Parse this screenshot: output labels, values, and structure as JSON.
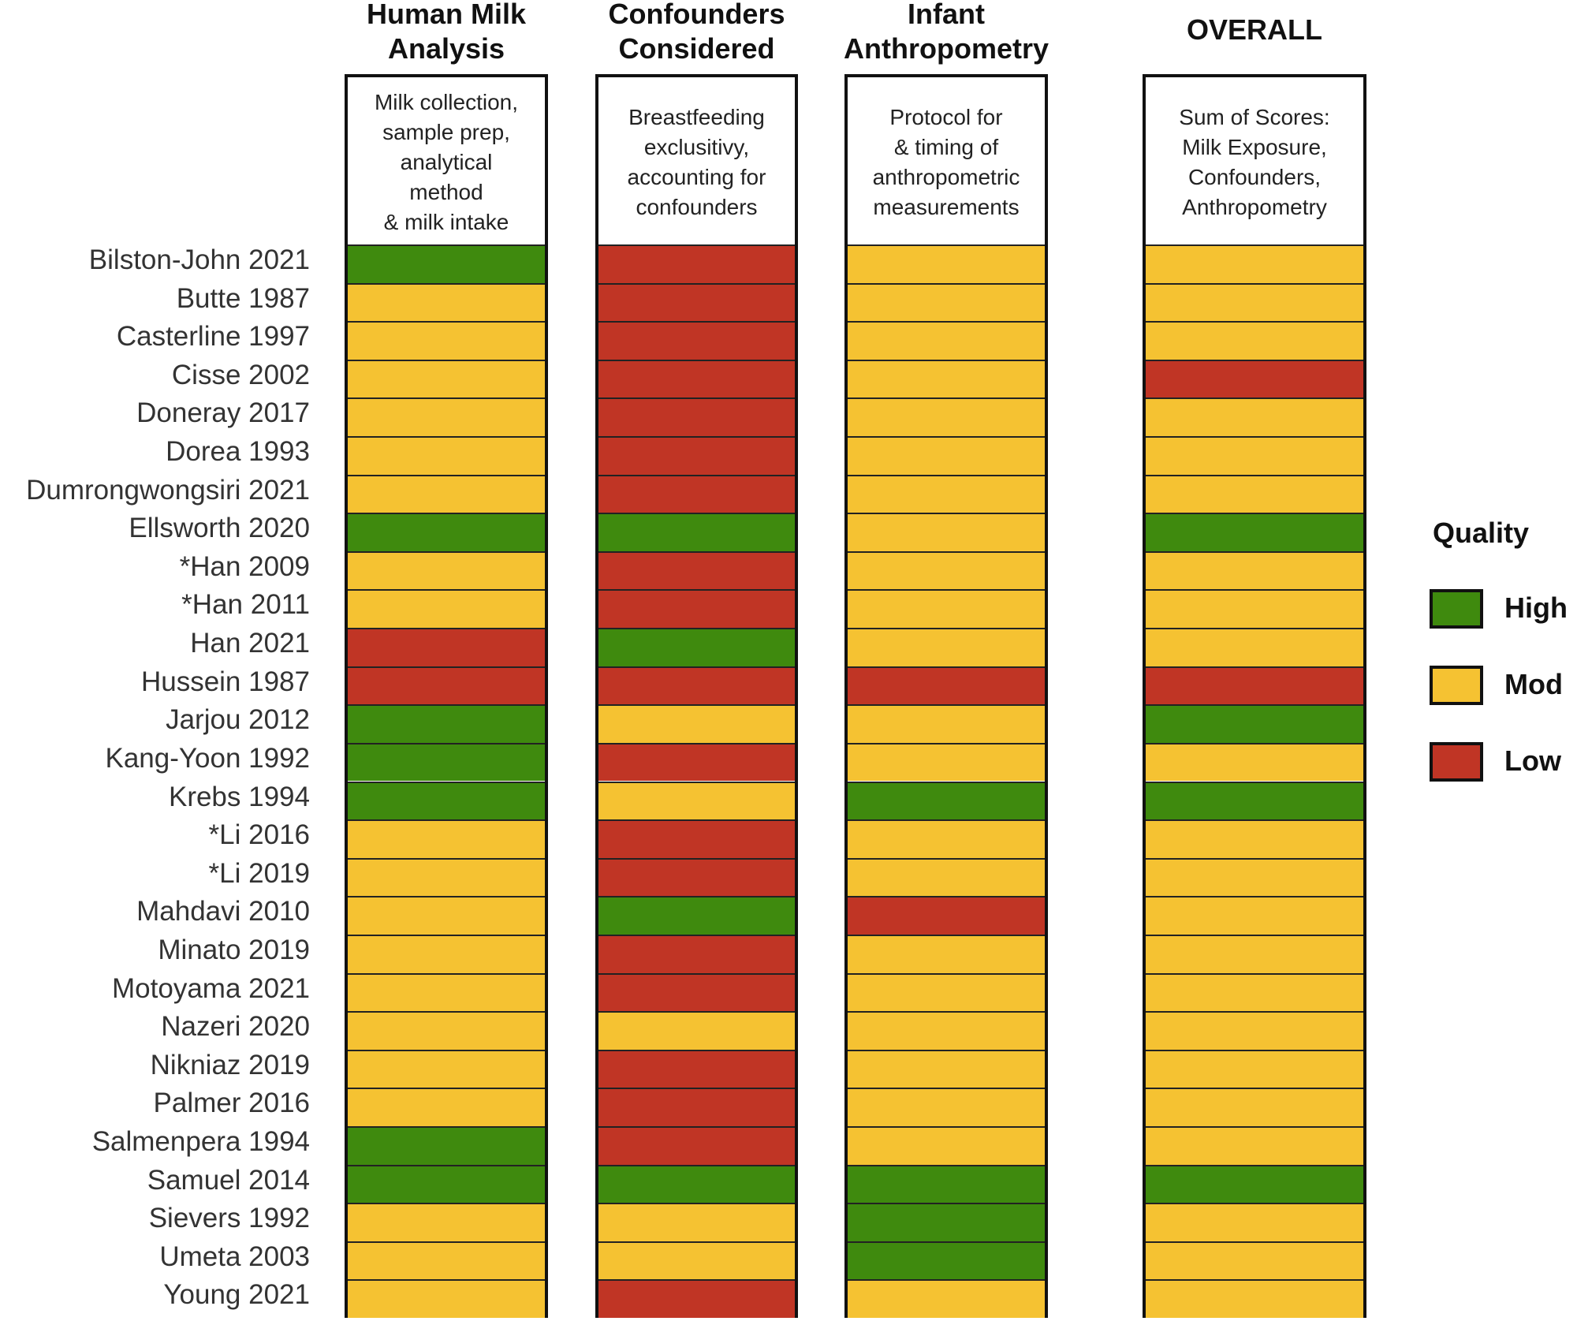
{
  "chart_data": {
    "type": "heatmap",
    "columns": [
      {
        "title": "Human Milk Analysis",
        "title_lines": [
          "Human Milk",
          "Analysis"
        ],
        "description_lines": [
          "Milk collection,",
          "sample prep,",
          "analytical",
          "method",
          "& milk intake"
        ]
      },
      {
        "title": "Confounders Considered",
        "title_lines": [
          "Confounders",
          "Considered"
        ],
        "description_lines": [
          "Breastfeeding",
          "exclusitivy,",
          "accounting for",
          "confounders"
        ]
      },
      {
        "title": "Infant Anthropometry",
        "title_lines": [
          "Infant",
          "Anthropometry"
        ],
        "description_lines": [
          "Protocol for",
          "& timing of",
          "anthropometric",
          "measurements"
        ]
      },
      {
        "title": "OVERALL",
        "title_lines": [
          "OVERALL"
        ],
        "description_lines": [
          "Sum of Scores:",
          "Milk Exposure,",
          "Confounders,",
          "Anthropometry"
        ]
      }
    ],
    "rows": [
      {
        "study": "Bilston-John 2021",
        "ratings": [
          "High",
          "Low",
          "Mod",
          "Mod"
        ]
      },
      {
        "study": "Butte 1987",
        "ratings": [
          "Mod",
          "Low",
          "Mod",
          "Mod"
        ]
      },
      {
        "study": "Casterline 1997",
        "ratings": [
          "Mod",
          "Low",
          "Mod",
          "Mod"
        ]
      },
      {
        "study": "Cisse 2002",
        "ratings": [
          "Mod",
          "Low",
          "Mod",
          "Low"
        ]
      },
      {
        "study": "Doneray 2017",
        "ratings": [
          "Mod",
          "Low",
          "Mod",
          "Mod"
        ]
      },
      {
        "study": "Dorea 1993",
        "ratings": [
          "Mod",
          "Low",
          "Mod",
          "Mod"
        ]
      },
      {
        "study": "Dumrongwongsiri 2021",
        "ratings": [
          "Mod",
          "Low",
          "Mod",
          "Mod"
        ]
      },
      {
        "study": "Ellsworth 2020",
        "ratings": [
          "High",
          "High",
          "Mod",
          "High"
        ]
      },
      {
        "study": "*Han 2009",
        "ratings": [
          "Mod",
          "Low",
          "Mod",
          "Mod"
        ]
      },
      {
        "study": "*Han 2011",
        "ratings": [
          "Mod",
          "Low",
          "Mod",
          "Mod"
        ]
      },
      {
        "study": "Han 2021",
        "ratings": [
          "Low",
          "High",
          "Mod",
          "Mod"
        ]
      },
      {
        "study": "Hussein 1987",
        "ratings": [
          "Low",
          "Low",
          "Low",
          "Low"
        ]
      },
      {
        "study": "Jarjou 2012",
        "ratings": [
          "High",
          "Mod",
          "Mod",
          "High"
        ]
      },
      {
        "study": "Kang-Yoon 1992",
        "ratings": [
          "High",
          "Low",
          "Mod",
          "Mod"
        ]
      },
      {
        "study": "Krebs 1994",
        "ratings": [
          "High",
          "Mod",
          "High",
          "High"
        ]
      },
      {
        "study": "*Li 2016",
        "ratings": [
          "Mod",
          "Low",
          "Mod",
          "Mod"
        ]
      },
      {
        "study": "*Li 2019",
        "ratings": [
          "Mod",
          "Low",
          "Mod",
          "Mod"
        ]
      },
      {
        "study": "Mahdavi 2010",
        "ratings": [
          "Mod",
          "High",
          "Low",
          "Mod"
        ]
      },
      {
        "study": "Minato 2019",
        "ratings": [
          "Mod",
          "Low",
          "Mod",
          "Mod"
        ]
      },
      {
        "study": "Motoyama 2021",
        "ratings": [
          "Mod",
          "Low",
          "Mod",
          "Mod"
        ]
      },
      {
        "study": "Nazeri 2020",
        "ratings": [
          "Mod",
          "Mod",
          "Mod",
          "Mod"
        ]
      },
      {
        "study": "Nikniaz 2019",
        "ratings": [
          "Mod",
          "Low",
          "Mod",
          "Mod"
        ]
      },
      {
        "study": "Palmer 2016",
        "ratings": [
          "Mod",
          "Low",
          "Mod",
          "Mod"
        ]
      },
      {
        "study": "Salmenpera 1994",
        "ratings": [
          "High",
          "Low",
          "Mod",
          "Mod"
        ]
      },
      {
        "study": "Samuel 2014",
        "ratings": [
          "High",
          "High",
          "High",
          "High"
        ]
      },
      {
        "study": "Sievers 1992",
        "ratings": [
          "Mod",
          "Mod",
          "High",
          "Mod"
        ]
      },
      {
        "study": "Umeta 2003",
        "ratings": [
          "Mod",
          "Mod",
          "High",
          "Mod"
        ]
      },
      {
        "study": "Young 2021",
        "ratings": [
          "Mod",
          "Low",
          "Mod",
          "Mod"
        ]
      }
    ],
    "legend": {
      "title": "Quality",
      "placement": "right",
      "entries": [
        {
          "label": "High",
          "color": "#3f8a0e"
        },
        {
          "label": "Mod",
          "color": "#f5c232"
        },
        {
          "label": "Low",
          "color": "#c03525"
        }
      ]
    }
  }
}
